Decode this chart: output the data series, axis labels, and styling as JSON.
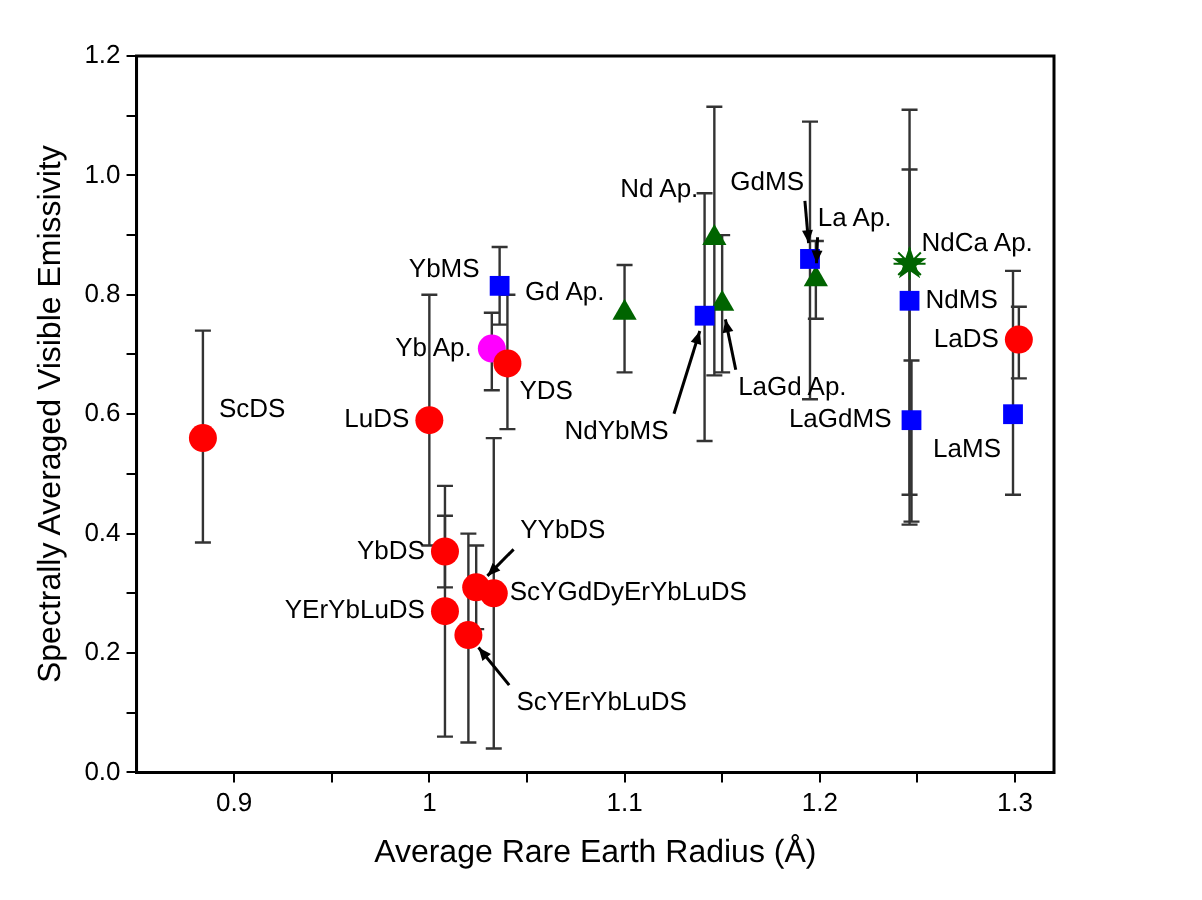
{
  "chart_data": {
    "type": "scatter",
    "xlabel": "Average Rare Earth Radius (Å)",
    "ylabel": "Spectrally Averaged Visible Emissivity",
    "xlim": [
      0.85,
      1.32
    ],
    "xticks": [
      0.9,
      {
        "value": 0.95,
        "label": null
      },
      1.0,
      {
        "value": 1.05,
        "label": null
      },
      1.1,
      {
        "value": 1.15,
        "label": null
      },
      1.2,
      {
        "value": 1.25,
        "label": null
      },
      1.3
    ],
    "ylim": [
      0,
      1.2
    ],
    "yticks": [
      {
        "value": 0,
        "label": "0.0"
      },
      {
        "value": 0.1,
        "label": null
      },
      {
        "value": 0.2,
        "label": "0.2"
      },
      {
        "value": 0.3,
        "label": null
      },
      {
        "value": 0.4,
        "label": "0.4"
      },
      {
        "value": 0.5,
        "label": null
      },
      {
        "value": 0.6,
        "label": "0.6"
      },
      {
        "value": 0.7,
        "label": null
      },
      {
        "value": 0.8,
        "label": "0.8"
      },
      {
        "value": 0.9,
        "label": null
      },
      {
        "value": 1.0,
        "label": "1.0"
      },
      {
        "value": 1.1,
        "label": null
      },
      {
        "value": 1.2,
        "label": "1.2"
      }
    ],
    "grid": false,
    "legend": false,
    "series": [
      {
        "color": "#ff0000",
        "marker": "circle",
        "x": [
          0.884,
          1.0,
          1.008,
          1.008,
          1.02,
          1.024,
          1.033,
          1.04,
          1.302
        ],
        "values": [
          0.56,
          0.59,
          0.37,
          0.27,
          0.23,
          0.31,
          0.3,
          0.685,
          0.725
        ],
        "errors": [
          [
            0.385,
            0.74
          ],
          [
            0.38,
            0.8
          ],
          [
            0.31,
            0.43
          ],
          [
            0.06,
            0.48
          ],
          [
            0.05,
            0.4
          ],
          [
            0.24,
            0.38
          ],
          [
            0.04,
            0.56
          ],
          [
            0.575,
            0.8
          ],
          [
            0.66,
            0.78
          ]
        ]
      },
      {
        "color": "#ff00ff",
        "marker": "circle",
        "x": [
          1.032
        ],
        "values": [
          0.71
        ],
        "errors": [
          [
            0.64,
            0.77
          ]
        ]
      },
      {
        "color": "#0000ff",
        "marker": "square",
        "x": [
          1.036,
          1.141,
          1.195,
          1.246,
          1.247,
          1.299
        ],
        "values": [
          0.815,
          0.765,
          0.86,
          0.79,
          0.59,
          0.6
        ],
        "errors": [
          [
            0.75,
            0.88
          ],
          [
            0.555,
            0.97
          ],
          [
            0.625,
            1.09
          ],
          [
            0.465,
            1.01
          ],
          [
            0.42,
            0.69
          ],
          [
            0.465,
            0.84
          ]
        ]
      },
      {
        "color": "#006400",
        "marker": "triangle",
        "x": [
          1.1,
          1.146,
          1.15,
          1.198
        ],
        "values": [
          0.77,
          0.895,
          0.785,
          0.826
        ],
        "errors": [
          [
            0.67,
            0.85
          ],
          [
            0.665,
            1.115
          ],
          [
            0.67,
            0.9
          ],
          [
            0.76,
            0.89
          ]
        ]
      },
      {
        "color": "#006400",
        "marker": "star",
        "x": [
          1.246
        ],
        "values": [
          0.852
        ],
        "errors": [
          [
            0.415,
            1.11
          ]
        ]
      }
    ],
    "annotations": [
      {
        "text": "ScDS",
        "x": 0.884,
        "y": 0.56
      },
      {
        "text": "LuDS",
        "x": 1.0,
        "y": 0.59
      },
      {
        "text": "YbDS",
        "x": 1.008,
        "y": 0.37
      },
      {
        "text": "YErYbLuDS",
        "x": 1.008,
        "y": 0.27
      },
      {
        "text": "ScYErYbLuDS",
        "x": 1.02,
        "y": 0.23
      },
      {
        "text": "YYbDS",
        "x": 1.024,
        "y": 0.31
      },
      {
        "text": "ScYGdDyErYbLuDS",
        "x": 1.033,
        "y": 0.3
      },
      {
        "text": "YDS",
        "x": 1.04,
        "y": 0.685
      },
      {
        "text": "Yb Ap.",
        "x": 1.032,
        "y": 0.71
      },
      {
        "text": "YbMS",
        "x": 1.036,
        "y": 0.815
      },
      {
        "text": "Gd Ap.",
        "x": 1.1,
        "y": 0.77
      },
      {
        "text": "Nd Ap.",
        "x": 1.146,
        "y": 0.895
      },
      {
        "text": "NdYbMS",
        "x": 1.141,
        "y": 0.765
      },
      {
        "text": "LaGd Ap.",
        "x": 1.15,
        "y": 0.785
      },
      {
        "text": "GdMS",
        "x": 1.195,
        "y": 0.86
      },
      {
        "text": "La Ap.",
        "x": 1.198,
        "y": 0.826
      },
      {
        "text": "NdCa Ap.",
        "x": 1.246,
        "y": 0.852
      },
      {
        "text": "NdMS",
        "x": 1.246,
        "y": 0.79
      },
      {
        "text": "LaGdMS",
        "x": 1.247,
        "y": 0.59
      },
      {
        "text": "LaMS",
        "x": 1.299,
        "y": 0.6
      },
      {
        "text": "LaDS",
        "x": 1.302,
        "y": 0.725
      }
    ]
  }
}
